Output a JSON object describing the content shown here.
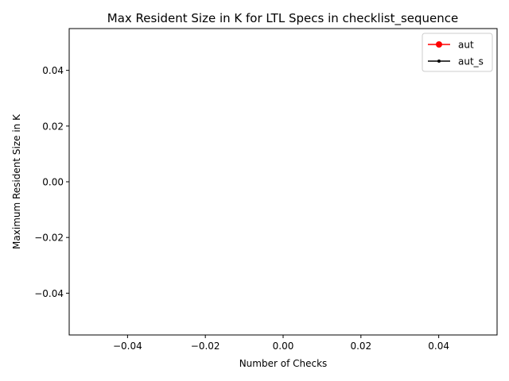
{
  "chart_data": {
    "type": "line",
    "title": "Max Resident Size in K for LTL Specs in checklist_sequence",
    "xlabel": "Number of Checks",
    "ylabel": "Maximum Resident Size in K",
    "xlim": [
      -0.055,
      0.055
    ],
    "ylim": [
      -0.055,
      0.055
    ],
    "xticks": [
      -0.04,
      -0.02,
      0.0,
      0.02,
      0.04
    ],
    "xtick_labels": [
      "−0.04",
      "−0.02",
      "0.00",
      "0.02",
      "0.04"
    ],
    "yticks": [
      -0.04,
      -0.02,
      0.0,
      0.02,
      0.04
    ],
    "ytick_labels": [
      "−0.04",
      "−0.02",
      "0.00",
      "0.02",
      "0.04"
    ],
    "grid": false,
    "legend_position": "top-right",
    "series": [
      {
        "name": "aut",
        "color": "#ff0000",
        "marker": "large-dot",
        "x": [],
        "y": []
      },
      {
        "name": "aut_s",
        "color": "#000000",
        "marker": "small-dot",
        "x": [],
        "y": []
      }
    ]
  }
}
